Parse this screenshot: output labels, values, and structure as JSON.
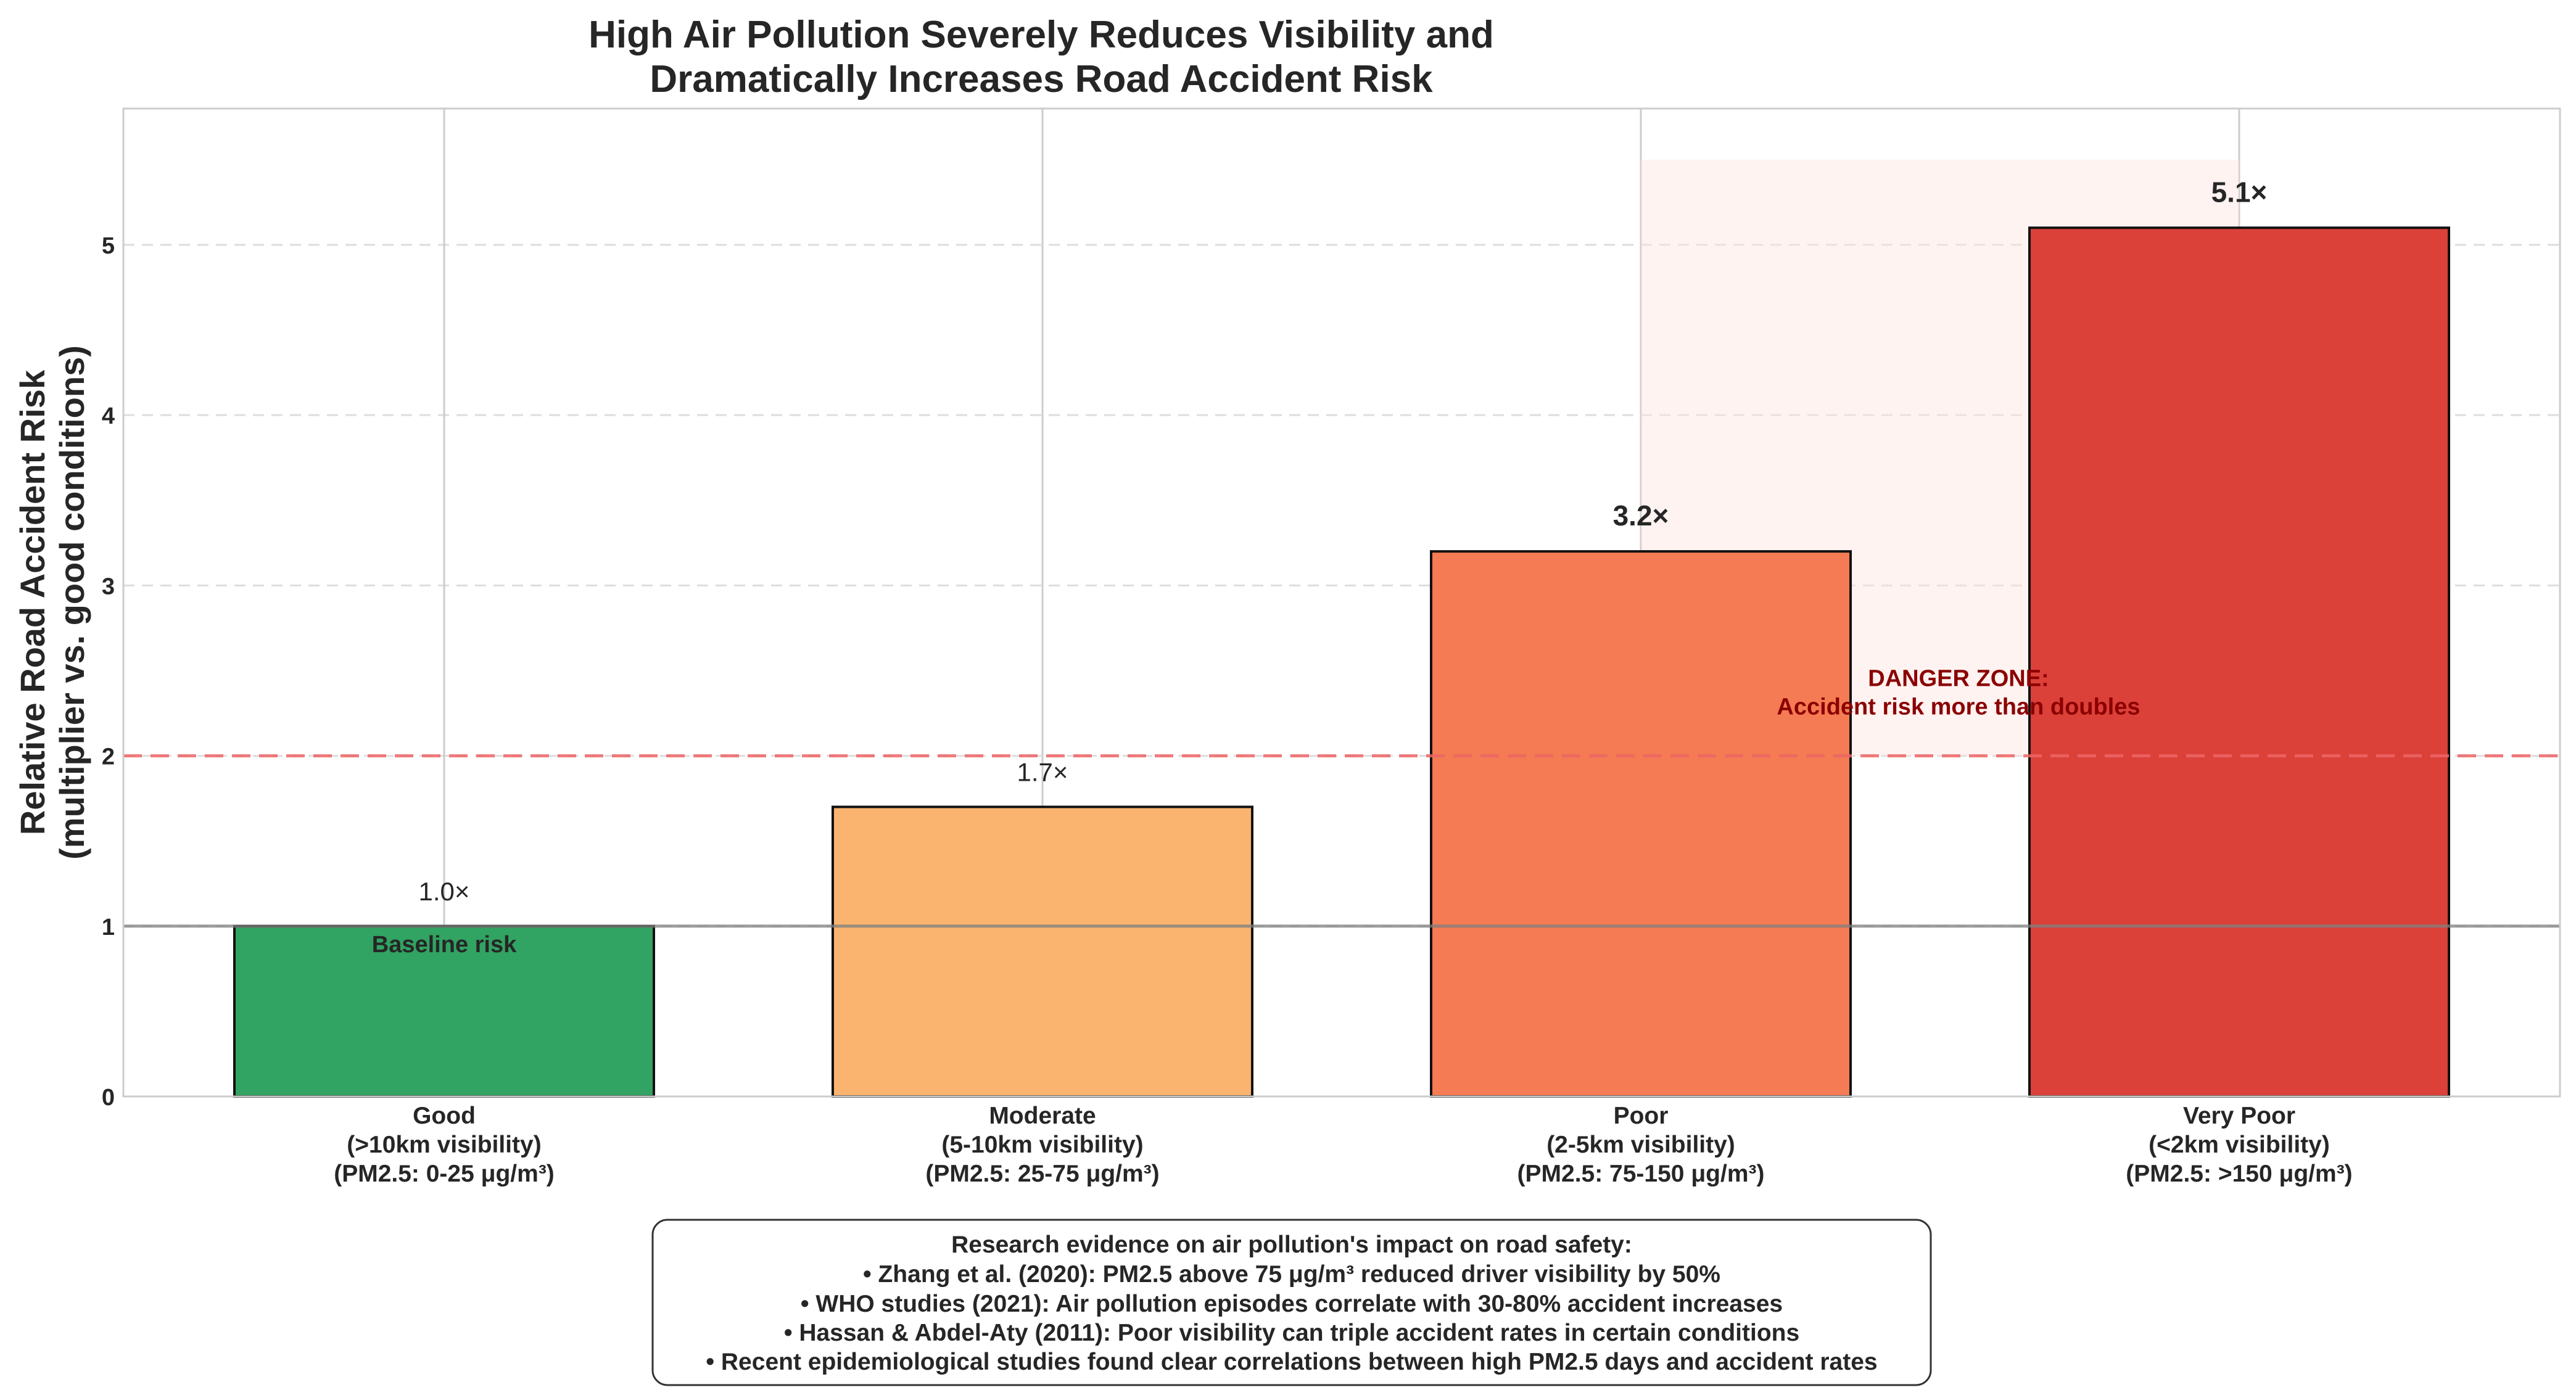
{
  "chart_data": {
    "type": "bar",
    "title_lines": [
      "High Air Pollution Severely Reduces Visibility and",
      "Dramatically Increases Road Accident Risk"
    ],
    "ylabel_lines": [
      "Relative Road Accident Risk",
      "(multiplier vs. good conditions)"
    ],
    "ylim": [
      0,
      5.8
    ],
    "yticks": [
      "0",
      "1",
      "2",
      "3",
      "4",
      "5"
    ],
    "grid": true,
    "categories": [
      {
        "lines": [
          "Good",
          "(>10km visibility)",
          "(PM2.5: 0-25 μg/m³)"
        ]
      },
      {
        "lines": [
          "Moderate",
          "(5-10km visibility)",
          "(PM2.5: 25-75 μg/m³)"
        ]
      },
      {
        "lines": [
          "Poor",
          "(2-5km visibility)",
          "(PM2.5: 75-150 μg/m³)"
        ]
      },
      {
        "lines": [
          "Very Poor",
          "(<2km visibility)",
          "(PM2.5: >150 μg/m³)"
        ]
      }
    ],
    "values": [
      1.0,
      1.7,
      3.2,
      5.1
    ],
    "value_labels": [
      "1.0×",
      "1.7×",
      "3.2×",
      "5.1×"
    ],
    "colors": [
      "#31a362",
      "#fbb470",
      "#f47b53",
      "#db4139"
    ],
    "baseline": {
      "value": 1,
      "label": "Baseline risk"
    },
    "danger_threshold": {
      "value": 2,
      "color": "#ee6666"
    },
    "danger_zone": {
      "y_range": [
        2,
        5.5
      ],
      "label_lines": [
        "DANGER ZONE:",
        "Accident risk more than doubles"
      ],
      "color": "#8b0000"
    },
    "annotation_box": {
      "lines": [
        "Research evidence on air pollution's impact on road safety:",
        "• Zhang et al. (2020): PM2.5 above 75 μg/m³ reduced driver visibility by 50%",
        "• WHO studies (2021): Air pollution episodes correlate with 30-80% accident increases",
        "• Hassan & Abdel-Aty (2011): Poor visibility can triple accident rates in certain conditions",
        "• Recent epidemiological studies found clear correlations between high PM2.5 days and accident rates"
      ]
    }
  }
}
